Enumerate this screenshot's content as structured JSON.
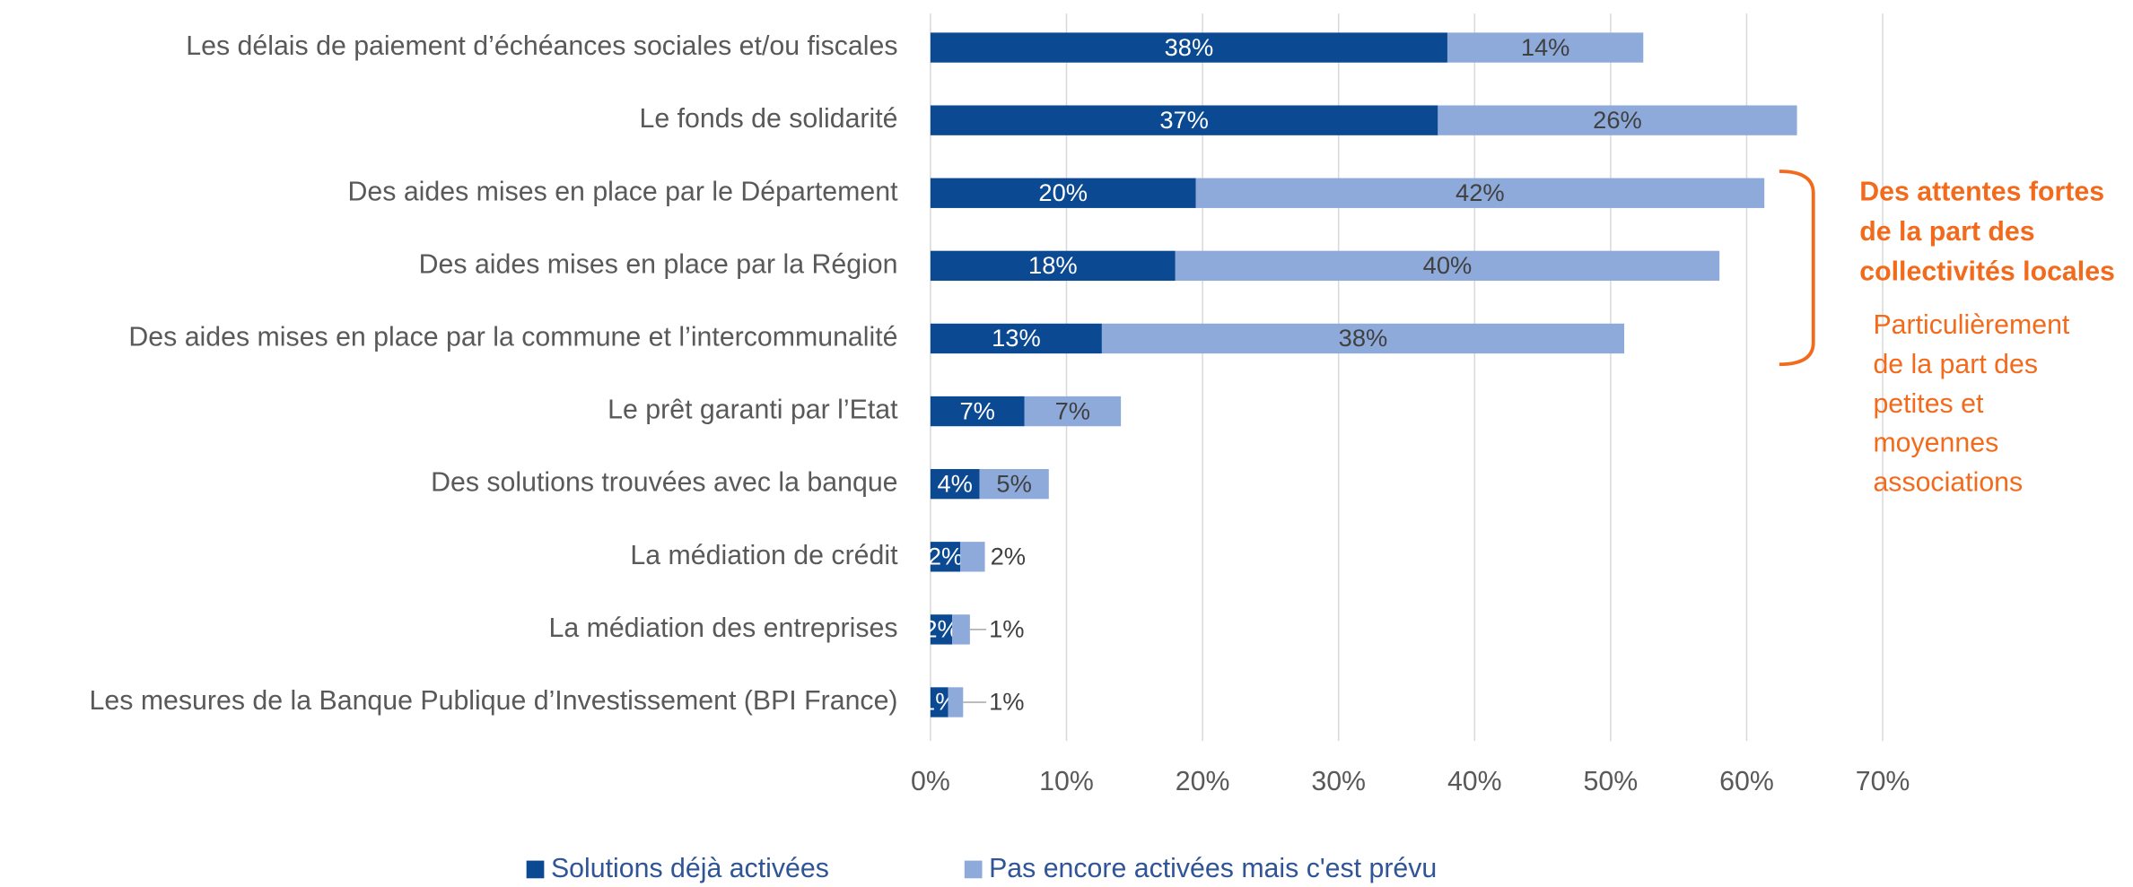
{
  "chart_data": {
    "type": "stacked-barh",
    "categories": [
      "Les délais de paiement d’échéances sociales et/ou fiscales",
      "Le fonds de solidarité",
      "Des aides mises en place par le Département",
      "Des aides mises en place par la Région",
      "Des aides mises en place par la commune et l’intercommunalité",
      "Le prêt garanti par l’Etat",
      "Des solutions trouvées avec la banque",
      "La médiation de crédit",
      "La médiation des entreprises",
      "Les mesures de la Banque Publique d’Investissement (BPI France)"
    ],
    "series": [
      {
        "name": "Solutions déjà activées",
        "color": "#0b4a92",
        "values": [
          38.0,
          37.3,
          19.5,
          18.0,
          12.6,
          6.9,
          3.6,
          2.2,
          1.6,
          1.3
        ],
        "value_labels": [
          "38%",
          "37%",
          "20%",
          "18%",
          "13%",
          "7%",
          "4%",
          "2%",
          "2%",
          "1%"
        ]
      },
      {
        "name": "Pas encore activées mais c'est prévu",
        "color": "#8eaadb",
        "values": [
          14.4,
          26.4,
          41.8,
          40.0,
          38.4,
          7.1,
          5.1,
          1.8,
          1.3,
          1.1
        ],
        "value_labels": [
          "14%",
          "26%",
          "42%",
          "40%",
          "38%",
          "7%",
          "5%",
          "2%",
          "1%",
          "1%"
        ]
      }
    ],
    "xlim": [
      0,
      70
    ],
    "xticks": [
      {
        "value": 0,
        "label": "0%"
      },
      {
        "value": 10,
        "label": "10%"
      },
      {
        "value": 20,
        "label": "20%"
      },
      {
        "value": 30,
        "label": "30%"
      },
      {
        "value": 40,
        "label": "40%"
      },
      {
        "value": 50,
        "label": "50%"
      },
      {
        "value": 60,
        "label": "60%"
      },
      {
        "value": 70,
        "label": "70%"
      }
    ],
    "grid": true,
    "legend": "bottom",
    "annotation": {
      "color": "#f26b1d",
      "title_lines": [
        "Des attentes fortes",
        "de la part des",
        "collectivités locales"
      ],
      "text_lines": [
        "Particulièrement",
        "de la part des",
        "petites et",
        "moyennes",
        "associations"
      ]
    }
  }
}
